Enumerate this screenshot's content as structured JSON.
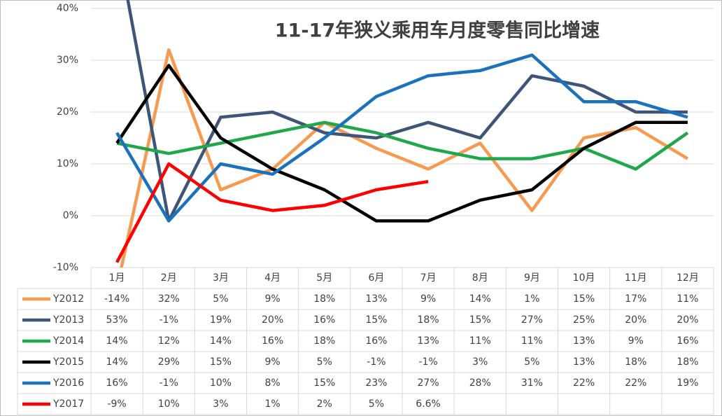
{
  "chart_data": {
    "type": "line",
    "title": "11-17年狭义乘用车月度零售同比增速",
    "categories": [
      "1月",
      "2月",
      "3月",
      "4月",
      "5月",
      "6月",
      "7月",
      "8月",
      "9月",
      "10月",
      "11月",
      "12月"
    ],
    "ylim": [
      -10,
      40
    ],
    "yticks": [
      {
        "value": -10,
        "label": "-10%"
      },
      {
        "value": 0,
        "label": "0%"
      },
      {
        "value": 10,
        "label": "10%"
      },
      {
        "value": 20,
        "label": "20%"
      },
      {
        "value": 30,
        "label": "30%"
      },
      {
        "value": 40,
        "label": "40%"
      }
    ],
    "grid": true,
    "series": [
      {
        "name": "Y2012",
        "color": "#f79a4f",
        "values": [
          -14,
          32,
          5,
          9,
          18,
          13,
          9,
          14,
          1,
          15,
          17,
          11
        ],
        "value_labels": [
          "-14%",
          "32%",
          "5%",
          "9%",
          "18%",
          "13%",
          "9%",
          "14%",
          "1%",
          "15%",
          "17%",
          "11%"
        ]
      },
      {
        "name": "Y2013",
        "color": "#3e5478",
        "values": [
          53,
          -1,
          19,
          20,
          16,
          15,
          18,
          15,
          27,
          25,
          20,
          20
        ],
        "value_labels": [
          "53%",
          "-1%",
          "19%",
          "20%",
          "16%",
          "15%",
          "18%",
          "15%",
          "27%",
          "25%",
          "20%",
          "20%"
        ]
      },
      {
        "name": "Y2014",
        "color": "#1ea84a",
        "values": [
          14,
          12,
          14,
          16,
          18,
          16,
          13,
          11,
          11,
          13,
          9,
          16
        ],
        "value_labels": [
          "14%",
          "12%",
          "14%",
          "16%",
          "18%",
          "16%",
          "13%",
          "11%",
          "11%",
          "13%",
          "9%",
          "16%"
        ]
      },
      {
        "name": "Y2015",
        "color": "#000000",
        "values": [
          14,
          29,
          15,
          9,
          5,
          -1,
          -1,
          3,
          5,
          13,
          18,
          18
        ],
        "value_labels": [
          "14%",
          "29%",
          "15%",
          "9%",
          "5%",
          "-1%",
          "-1%",
          "3%",
          "5%",
          "13%",
          "18%",
          "18%"
        ]
      },
      {
        "name": "Y2016",
        "color": "#1a72bd",
        "values": [
          16,
          -1,
          10,
          8,
          15,
          23,
          27,
          28,
          31,
          22,
          22,
          19
        ],
        "value_labels": [
          "16%",
          "-1%",
          "10%",
          "8%",
          "15%",
          "23%",
          "27%",
          "28%",
          "31%",
          "22%",
          "22%",
          "19%"
        ]
      },
      {
        "name": "Y2017",
        "color": "#ff0000",
        "values": [
          -9,
          10,
          3,
          1,
          2,
          5,
          6.6,
          null,
          null,
          null,
          null,
          null
        ],
        "value_labels": [
          "-9%",
          "10%",
          "3%",
          "1%",
          "2%",
          "5%",
          "6.6%",
          null,
          null,
          null,
          null,
          null
        ]
      }
    ]
  }
}
